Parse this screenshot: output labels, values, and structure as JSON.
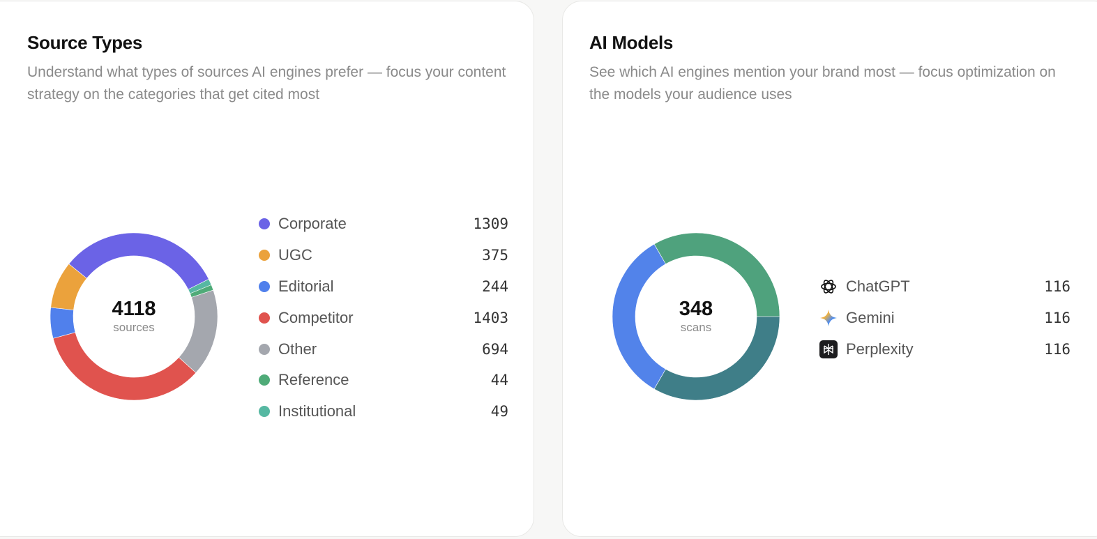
{
  "source_types": {
    "title": "Source Types",
    "description": "Understand what types of sources AI engines prefer — focus your content strategy on the categories that get cited most",
    "center_value": "4118",
    "center_label": "sources",
    "legend": [
      {
        "label": "Corporate",
        "value": "1309",
        "color": "#6b63e6"
      },
      {
        "label": "UGC",
        "value": "375",
        "color": "#eba23c"
      },
      {
        "label": "Editorial",
        "value": "244",
        "color": "#5080ec"
      },
      {
        "label": "Competitor",
        "value": "1403",
        "color": "#e0534e"
      },
      {
        "label": "Other",
        "value": "694",
        "color": "#a4a7ae"
      },
      {
        "label": "Reference",
        "value": "44",
        "color": "#4fab78"
      },
      {
        "label": "Institutional",
        "value": "49",
        "color": "#56b8a2"
      }
    ]
  },
  "ai_models": {
    "title": "AI Models",
    "description": "See which AI engines mention your brand most — focus optimization on the models your audience uses",
    "center_value": "348",
    "center_label": "scans",
    "legend": [
      {
        "label": "ChatGPT",
        "value": "116",
        "icon": "chatgpt-icon"
      },
      {
        "label": "Gemini",
        "value": "116",
        "icon": "gemini-icon"
      },
      {
        "label": "Perplexity",
        "value": "116",
        "icon": "perplexity-icon"
      }
    ]
  },
  "chart_data": [
    {
      "type": "pie",
      "title": "Source Types",
      "categories": [
        "Corporate",
        "UGC",
        "Editorial",
        "Competitor",
        "Other",
        "Reference",
        "Institutional"
      ],
      "values": [
        1309,
        375,
        244,
        1403,
        694,
        44,
        49
      ],
      "total": 4118,
      "donut": true,
      "slice_order": [
        "Corporate",
        "Institutional",
        "Reference",
        "Other",
        "Competitor",
        "Editorial",
        "UGC"
      ],
      "colors": {
        "Corporate": "#6b63e6",
        "UGC": "#eba23c",
        "Editorial": "#5080ec",
        "Competitor": "#e0534e",
        "Other": "#a4a7ae",
        "Reference": "#4fab78",
        "Institutional": "#56b8a2"
      },
      "legend": "right"
    },
    {
      "type": "pie",
      "title": "AI Models",
      "categories": [
        "ChatGPT",
        "Gemini",
        "Perplexity"
      ],
      "values": [
        116,
        116,
        116
      ],
      "total": 348,
      "donut": true,
      "slice_order": [
        "ChatGPT",
        "Gemini",
        "Perplexity"
      ],
      "colors": {
        "ChatGPT": "#4fa27d",
        "Gemini": "#3f7e88",
        "Perplexity": "#5283ea"
      },
      "legend": "right"
    }
  ]
}
